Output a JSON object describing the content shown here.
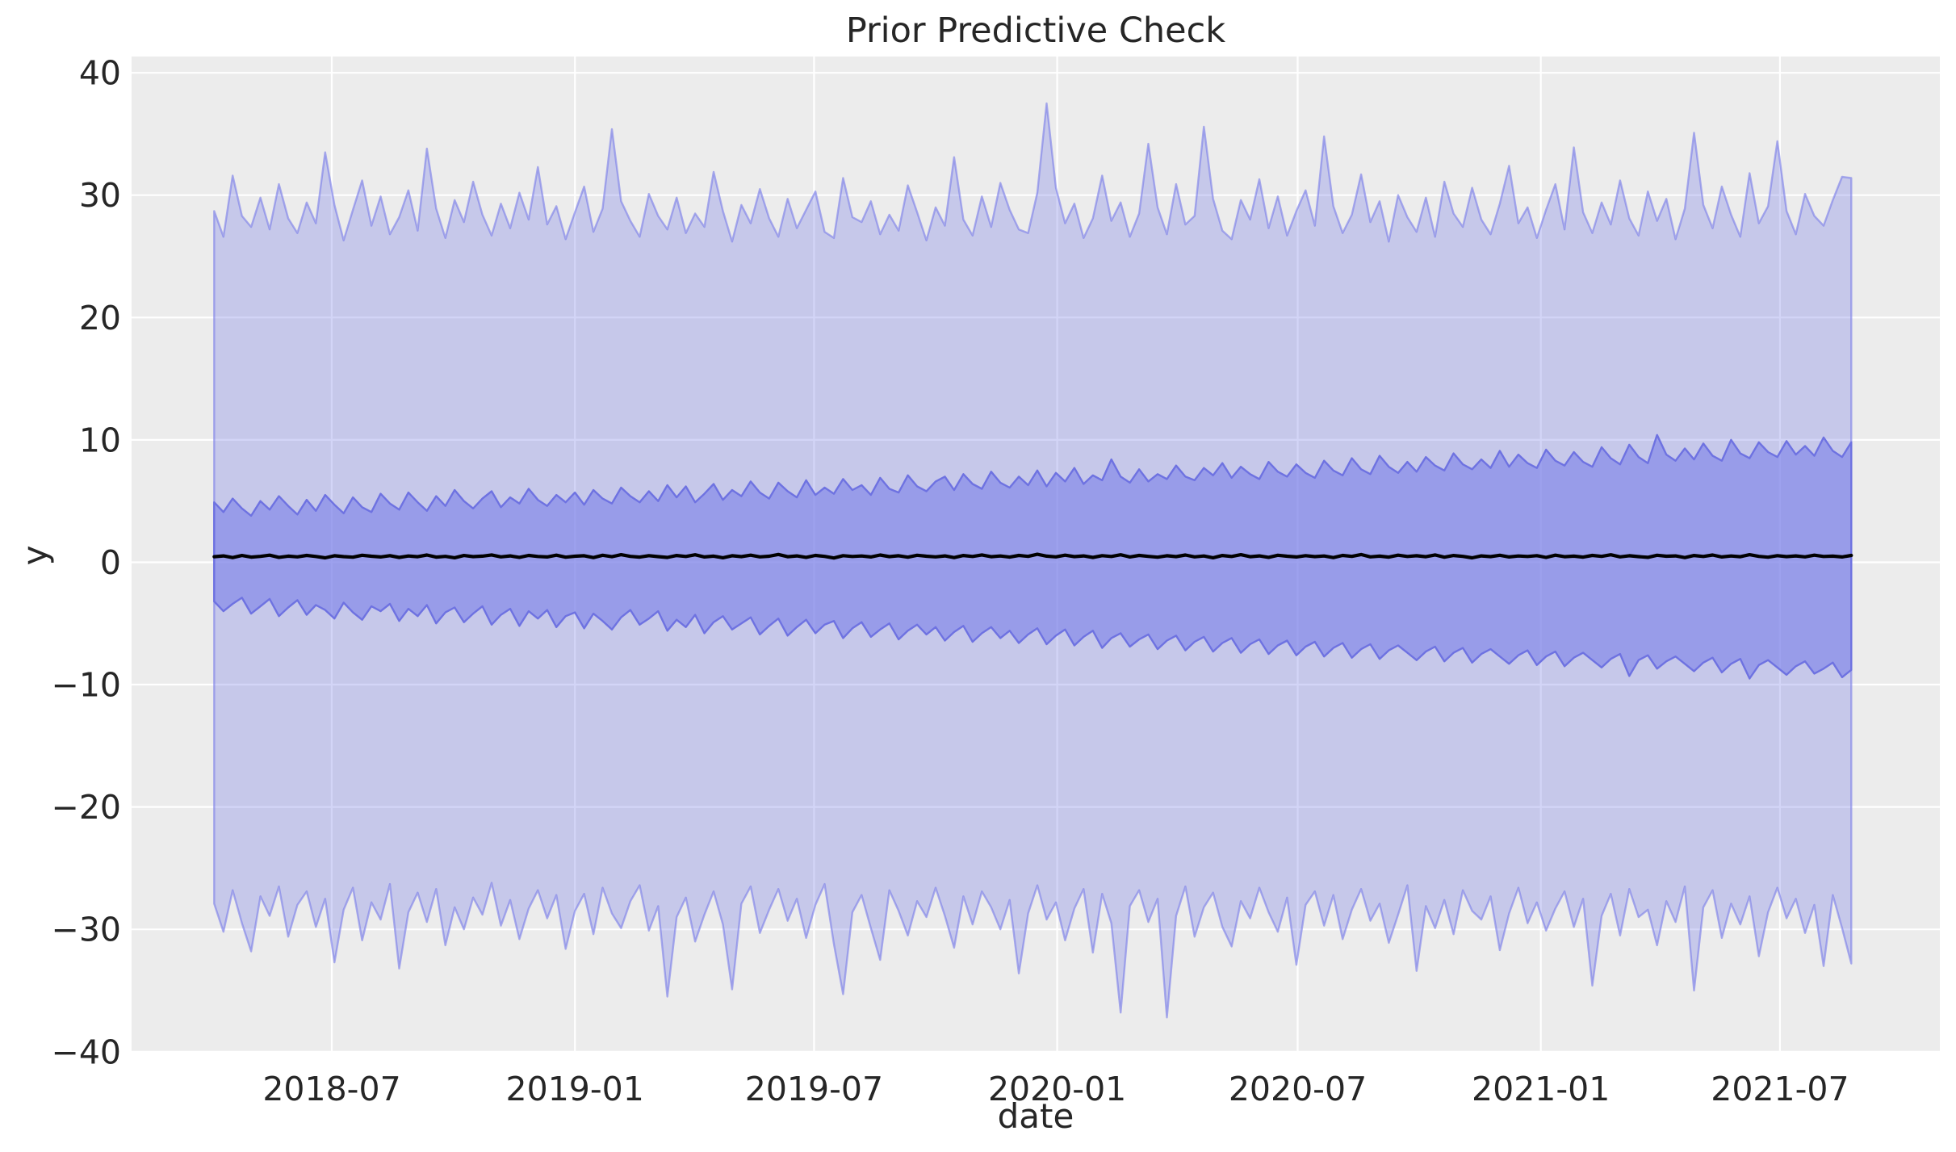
{
  "figure": {
    "title": "Prior Predictive Check"
  },
  "chart_data": {
    "type": "area",
    "title": "Prior Predictive Check",
    "xlabel": "date",
    "ylabel": "y",
    "grid": true,
    "legend": false,
    "x_axis": {
      "first_tick_date": "2018-07-01",
      "data_start_date": "2018-04-03",
      "data_start_day": -89,
      "step_days": 7,
      "n_points": 178,
      "lim_days": [
        -151.5,
        1217
      ],
      "ticks": [
        {
          "offset_days": 0,
          "label": "2018-07"
        },
        {
          "offset_days": 184,
          "label": "2019-01"
        },
        {
          "offset_days": 365,
          "label": "2019-07"
        },
        {
          "offset_days": 549,
          "label": "2020-01"
        },
        {
          "offset_days": 731,
          "label": "2020-07"
        },
        {
          "offset_days": 915,
          "label": "2021-01"
        },
        {
          "offset_days": 1096,
          "label": "2021-07"
        }
      ]
    },
    "y_axis": {
      "lim": [
        -39.95,
        41.33
      ],
      "ticks": [
        -40,
        -30,
        -20,
        -10,
        0,
        10,
        20,
        30,
        40
      ],
      "tick_labels": [
        "−40",
        "−30",
        "−20",
        "−10",
        "0",
        "10",
        "20",
        "30",
        "40"
      ]
    },
    "colors": {
      "plot_background": "#ECECEC",
      "gridline": "#FFFFFF",
      "band_base_rgb": "122,126,232",
      "outer_fill_alpha": 0.33,
      "inner_fill_alpha": 0.6,
      "outer_edge": "rgba(122,126,232,0.62)",
      "inner_edge": "#6E72E1",
      "median_line": "#000000",
      "text": "#262626"
    },
    "series": [
      {
        "name": "outer_band_upper",
        "values": [
          28.7,
          26.6,
          31.6,
          28.3,
          27.4,
          29.8,
          27.2,
          30.9,
          28.1,
          26.9,
          29.4,
          27.7,
          33.5,
          29.2,
          26.3,
          28.8,
          31.2,
          27.5,
          29.9,
          26.8,
          28.2,
          30.4,
          27.1,
          33.8,
          28.9,
          26.5,
          29.6,
          27.8,
          31.1,
          28.4,
          26.7,
          29.3,
          27.3,
          30.2,
          28.0,
          32.3,
          27.6,
          29.1,
          26.4,
          28.6,
          30.7,
          27.0,
          28.9,
          35.4,
          29.5,
          27.9,
          26.6,
          30.1,
          28.3,
          27.2,
          29.8,
          26.9,
          28.5,
          27.4,
          31.9,
          28.7,
          26.2,
          29.2,
          27.7,
          30.5,
          28.1,
          26.6,
          29.7,
          27.3,
          28.8,
          30.3,
          27.0,
          26.5,
          31.4,
          28.2,
          27.8,
          29.5,
          26.8,
          28.4,
          27.1,
          30.8,
          28.6,
          26.3,
          29.0,
          27.5,
          33.1,
          28.0,
          26.7,
          29.9,
          27.4,
          31.0,
          28.8,
          27.2,
          26.9,
          30.2,
          37.5,
          30.6,
          27.7,
          29.3,
          26.5,
          28.1,
          31.6,
          27.9,
          29.4,
          26.6,
          28.5,
          34.2,
          29.0,
          26.8,
          30.9,
          27.6,
          28.3,
          35.6,
          29.7,
          27.1,
          26.4,
          29.6,
          28.0,
          31.3,
          27.3,
          29.9,
          26.7,
          28.7,
          30.4,
          27.5,
          34.8,
          29.1,
          26.9,
          28.4,
          31.7,
          27.8,
          29.5,
          26.2,
          30.0,
          28.2,
          27.0,
          29.8,
          26.6,
          31.1,
          28.5,
          27.4,
          30.6,
          28.0,
          26.8,
          29.3,
          32.4,
          27.7,
          29.0,
          26.5,
          28.8,
          30.9,
          27.2,
          33.9,
          28.6,
          26.9,
          29.4,
          27.6,
          31.2,
          28.1,
          26.7,
          30.3,
          27.9,
          29.7,
          26.4,
          28.9,
          35.1,
          29.2,
          27.3,
          30.7,
          28.4,
          26.6,
          31.8,
          27.7,
          29.1,
          34.4,
          28.7,
          26.8,
          30.1,
          28.3,
          27.5,
          29.6,
          31.5,
          31.4
        ]
      },
      {
        "name": "outer_band_lower",
        "values": [
          -27.9,
          -30.2,
          -26.8,
          -29.5,
          -31.8,
          -27.3,
          -28.9,
          -26.5,
          -30.6,
          -28.0,
          -26.9,
          -29.8,
          -27.5,
          -32.7,
          -28.4,
          -26.6,
          -30.9,
          -27.8,
          -29.2,
          -26.3,
          -33.2,
          -28.6,
          -27.0,
          -29.4,
          -26.7,
          -31.3,
          -28.2,
          -30.0,
          -27.4,
          -28.8,
          -26.2,
          -29.7,
          -27.6,
          -30.8,
          -28.3,
          -26.8,
          -29.1,
          -27.2,
          -31.6,
          -28.5,
          -27.1,
          -30.4,
          -26.6,
          -28.7,
          -29.9,
          -27.7,
          -26.4,
          -30.1,
          -28.1,
          -35.5,
          -29.0,
          -27.4,
          -31.0,
          -28.8,
          -26.9,
          -29.6,
          -34.9,
          -27.9,
          -26.5,
          -30.3,
          -28.4,
          -26.7,
          -29.3,
          -27.5,
          -30.7,
          -28.0,
          -26.3,
          -31.2,
          -35.3,
          -28.6,
          -27.2,
          -29.9,
          -32.5,
          -26.8,
          -28.5,
          -30.5,
          -27.7,
          -29.0,
          -26.6,
          -28.9,
          -31.5,
          -27.3,
          -29.6,
          -26.9,
          -28.2,
          -30.0,
          -27.6,
          -33.6,
          -28.7,
          -26.4,
          -29.2,
          -27.8,
          -30.9,
          -28.3,
          -26.7,
          -31.9,
          -27.1,
          -29.5,
          -36.8,
          -28.1,
          -26.8,
          -29.4,
          -27.5,
          -37.2,
          -28.9,
          -26.5,
          -30.6,
          -28.2,
          -27.0,
          -29.8,
          -31.4,
          -27.7,
          -29.1,
          -26.6,
          -28.6,
          -30.2,
          -27.4,
          -32.9,
          -28.0,
          -26.9,
          -29.7,
          -27.2,
          -30.8,
          -28.4,
          -26.7,
          -29.3,
          -27.9,
          -31.1,
          -28.8,
          -26.4,
          -33.4,
          -28.1,
          -29.9,
          -27.6,
          -30.4,
          -26.8,
          -28.5,
          -29.2,
          -27.3,
          -31.7,
          -28.7,
          -26.6,
          -29.5,
          -27.8,
          -30.1,
          -28.3,
          -26.9,
          -29.8,
          -27.5,
          -34.6,
          -28.9,
          -27.1,
          -30.5,
          -26.7,
          -29.0,
          -28.4,
          -31.3,
          -27.7,
          -29.4,
          -26.5,
          -35.0,
          -28.2,
          -26.8,
          -30.7,
          -27.9,
          -29.6,
          -27.3,
          -32.2,
          -28.6,
          -26.6,
          -29.1,
          -27.5,
          -30.3,
          -28.0,
          -33.0,
          -27.2,
          -29.9,
          -32.8
        ]
      },
      {
        "name": "inner_band_upper",
        "values": [
          4.9,
          4.1,
          5.2,
          4.4,
          3.8,
          5.0,
          4.3,
          5.4,
          4.6,
          3.9,
          5.1,
          4.2,
          5.5,
          4.7,
          4.0,
          5.3,
          4.5,
          4.1,
          5.6,
          4.8,
          4.3,
          5.7,
          4.9,
          4.2,
          5.4,
          4.6,
          5.9,
          5.0,
          4.4,
          5.2,
          5.8,
          4.5,
          5.3,
          4.8,
          6.0,
          5.1,
          4.6,
          5.5,
          4.9,
          5.7,
          4.7,
          5.9,
          5.2,
          4.8,
          6.1,
          5.4,
          4.9,
          5.8,
          5.0,
          6.3,
          5.3,
          6.2,
          4.9,
          5.6,
          6.4,
          5.1,
          5.9,
          5.4,
          6.6,
          5.7,
          5.2,
          6.5,
          5.8,
          5.3,
          6.7,
          5.5,
          6.1,
          5.6,
          6.8,
          5.9,
          6.3,
          5.5,
          6.9,
          6.0,
          5.7,
          7.1,
          6.2,
          5.8,
          6.6,
          7.0,
          5.9,
          7.2,
          6.4,
          6.0,
          7.4,
          6.5,
          6.1,
          7.0,
          6.3,
          7.5,
          6.2,
          7.3,
          6.6,
          7.7,
          6.4,
          7.1,
          6.7,
          8.4,
          7.0,
          6.5,
          7.6,
          6.6,
          7.2,
          6.8,
          7.9,
          7.0,
          6.7,
          7.7,
          7.1,
          8.1,
          6.9,
          7.8,
          7.2,
          6.8,
          8.2,
          7.4,
          7.0,
          8.0,
          7.3,
          6.9,
          8.3,
          7.5,
          7.1,
          8.5,
          7.6,
          7.2,
          8.7,
          7.8,
          7.3,
          8.2,
          7.4,
          8.6,
          7.9,
          7.5,
          8.9,
          8.0,
          7.6,
          8.4,
          7.7,
          9.1,
          7.8,
          8.8,
          8.1,
          7.7,
          9.2,
          8.3,
          7.9,
          9.0,
          8.2,
          7.8,
          9.4,
          8.5,
          8.0,
          9.6,
          8.6,
          8.1,
          10.4,
          8.8,
          8.3,
          9.3,
          8.4,
          9.7,
          8.7,
          8.3,
          10.0,
          8.9,
          8.5,
          9.8,
          9.0,
          8.6,
          9.9,
          8.8,
          9.5,
          8.7,
          10.2,
          9.1,
          8.6,
          9.8
        ]
      },
      {
        "name": "inner_band_lower",
        "values": [
          -3.2,
          -4.0,
          -3.4,
          -2.9,
          -4.2,
          -3.6,
          -3.0,
          -4.4,
          -3.7,
          -3.1,
          -4.3,
          -3.5,
          -3.9,
          -4.6,
          -3.3,
          -4.1,
          -4.7,
          -3.6,
          -4.0,
          -3.4,
          -4.8,
          -3.8,
          -4.4,
          -3.5,
          -5.0,
          -4.1,
          -3.7,
          -4.9,
          -4.2,
          -3.6,
          -5.1,
          -4.3,
          -3.8,
          -5.2,
          -4.0,
          -4.6,
          -3.9,
          -5.3,
          -4.4,
          -4.1,
          -5.4,
          -4.2,
          -4.8,
          -5.5,
          -4.5,
          -3.9,
          -5.1,
          -4.6,
          -4.0,
          -5.6,
          -4.7,
          -5.3,
          -4.3,
          -5.8,
          -4.9,
          -4.4,
          -5.5,
          -5.0,
          -4.5,
          -5.9,
          -5.2,
          -4.6,
          -6.0,
          -5.3,
          -4.7,
          -5.8,
          -5.1,
          -4.8,
          -6.2,
          -5.4,
          -4.9,
          -6.1,
          -5.5,
          -5.0,
          -6.3,
          -5.6,
          -5.1,
          -5.9,
          -5.3,
          -6.4,
          -5.7,
          -5.2,
          -6.5,
          -5.8,
          -5.3,
          -6.2,
          -5.6,
          -6.6,
          -5.9,
          -5.4,
          -6.7,
          -6.0,
          -5.5,
          -6.8,
          -6.1,
          -5.6,
          -7.0,
          -6.2,
          -5.8,
          -6.9,
          -6.3,
          -5.9,
          -7.1,
          -6.4,
          -6.0,
          -7.2,
          -6.5,
          -6.1,
          -7.3,
          -6.6,
          -6.2,
          -7.4,
          -6.7,
          -6.3,
          -7.5,
          -6.8,
          -6.4,
          -7.6,
          -6.9,
          -6.5,
          -7.7,
          -7.0,
          -6.6,
          -7.8,
          -7.1,
          -6.7,
          -7.9,
          -7.2,
          -6.8,
          -7.4,
          -8.0,
          -7.3,
          -6.9,
          -8.1,
          -7.4,
          -7.0,
          -8.2,
          -7.5,
          -7.1,
          -7.7,
          -8.3,
          -7.6,
          -7.2,
          -8.4,
          -7.7,
          -7.3,
          -8.5,
          -7.8,
          -7.4,
          -8.0,
          -8.6,
          -7.9,
          -7.5,
          -9.3,
          -8.0,
          -7.6,
          -8.7,
          -8.1,
          -7.7,
          -8.3,
          -8.9,
          -8.2,
          -7.8,
          -9.0,
          -8.3,
          -7.9,
          -9.5,
          -8.4,
          -8.0,
          -8.6,
          -9.2,
          -8.5,
          -8.1,
          -9.1,
          -8.7,
          -8.2,
          -9.4,
          -8.8
        ]
      },
      {
        "name": "median",
        "values": [
          0.45,
          0.52,
          0.38,
          0.55,
          0.42,
          0.48,
          0.58,
          0.4,
          0.5,
          0.44,
          0.56,
          0.47,
          0.36,
          0.53,
          0.46,
          0.41,
          0.57,
          0.49,
          0.43,
          0.54,
          0.39,
          0.51,
          0.45,
          0.59,
          0.42,
          0.48,
          0.37,
          0.55,
          0.46,
          0.5,
          0.6,
          0.44,
          0.52,
          0.4,
          0.56,
          0.47,
          0.43,
          0.58,
          0.41,
          0.49,
          0.53,
          0.38,
          0.57,
          0.45,
          0.62,
          0.48,
          0.42,
          0.54,
          0.46,
          0.39,
          0.55,
          0.47,
          0.61,
          0.43,
          0.5,
          0.37,
          0.53,
          0.46,
          0.58,
          0.44,
          0.49,
          0.64,
          0.45,
          0.52,
          0.4,
          0.56,
          0.48,
          0.35,
          0.54,
          0.47,
          0.51,
          0.43,
          0.59,
          0.46,
          0.53,
          0.41,
          0.57,
          0.49,
          0.44,
          0.52,
          0.38,
          0.55,
          0.47,
          0.6,
          0.45,
          0.51,
          0.42,
          0.56,
          0.48,
          0.65,
          0.5,
          0.44,
          0.58,
          0.46,
          0.52,
          0.39,
          0.54,
          0.47,
          0.61,
          0.43,
          0.56,
          0.48,
          0.41,
          0.53,
          0.46,
          0.59,
          0.44,
          0.51,
          0.37,
          0.55,
          0.47,
          0.62,
          0.45,
          0.52,
          0.4,
          0.57,
          0.49,
          0.43,
          0.54,
          0.46,
          0.51,
          0.38,
          0.56,
          0.48,
          0.63,
          0.44,
          0.5,
          0.42,
          0.58,
          0.47,
          0.53,
          0.45,
          0.6,
          0.41,
          0.55,
          0.48,
          0.36,
          0.52,
          0.46,
          0.57,
          0.43,
          0.51,
          0.47,
          0.54,
          0.39,
          0.58,
          0.45,
          0.5,
          0.42,
          0.56,
          0.48,
          0.61,
          0.44,
          0.53,
          0.46,
          0.4,
          0.57,
          0.49,
          0.52,
          0.38,
          0.55,
          0.47,
          0.59,
          0.43,
          0.51,
          0.45,
          0.62,
          0.48,
          0.41,
          0.54,
          0.46,
          0.52,
          0.44,
          0.58,
          0.47,
          0.5,
          0.43,
          0.56
        ]
      }
    ]
  }
}
